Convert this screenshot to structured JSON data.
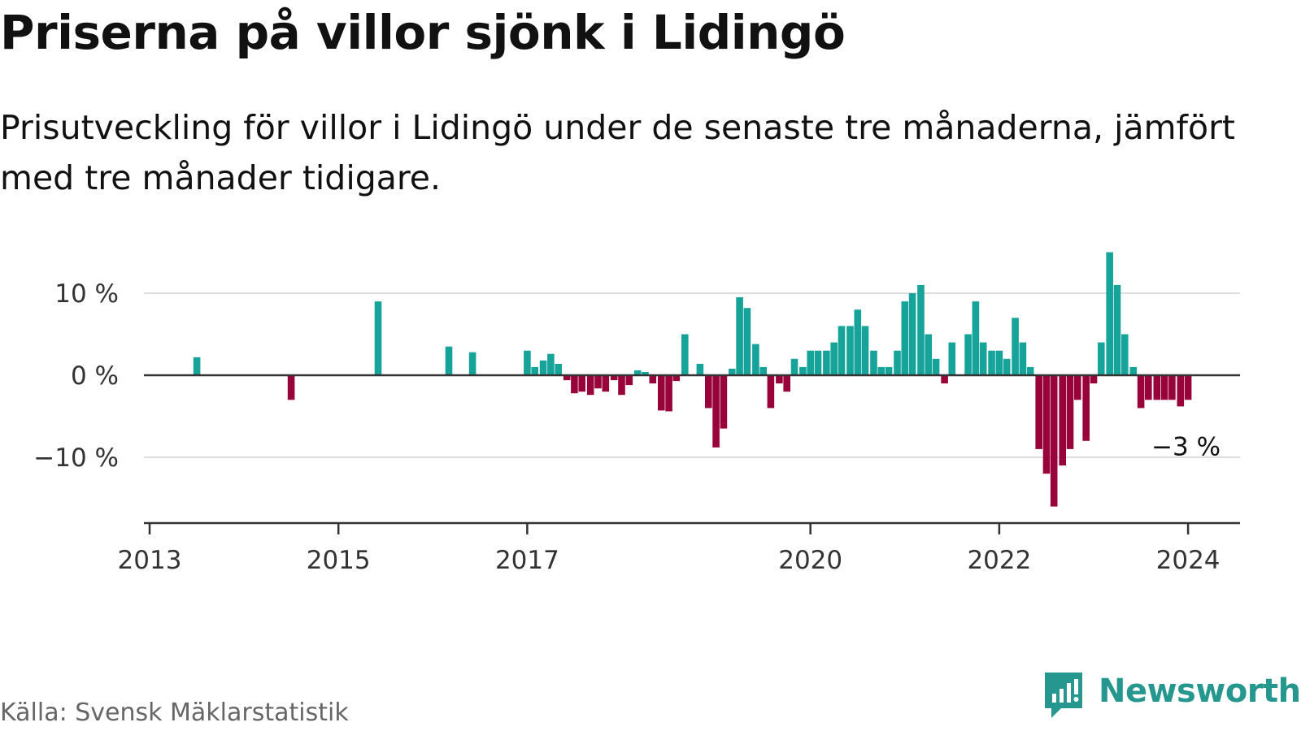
{
  "title": "Priserna på villor sjönk i Lidingö",
  "subtitle": "Prisutveckling för villor i Lidingö under de senaste tre månaderna, jämfört med tre månader tidigare.",
  "source": "Källa: Svensk Mäklarstatistik",
  "brand": "Newsworthy",
  "colors": {
    "positive": "#16a39a",
    "negative": "#980439",
    "grid": "#dddddd",
    "axis": "#333333",
    "brand": "#26978f"
  },
  "chart_data": {
    "type": "bar",
    "title": "Priserna på villor sjönk i Lidingö",
    "xlabel": "",
    "ylabel": "",
    "ylim": [
      -18,
      15
    ],
    "xlim": [
      2013,
      2024.6
    ],
    "grid": true,
    "y_ticks": [
      10,
      0,
      -10
    ],
    "y_tick_labels": [
      "10 %",
      "0 %",
      "−10 %"
    ],
    "x_ticks": [
      2013,
      2015,
      2017,
      2020,
      2022,
      2024
    ],
    "x_tick_labels": [
      "2013",
      "2015",
      "2017",
      "2020",
      "2022",
      "2024"
    ],
    "annotation": {
      "text": "−3 %",
      "x": 2024,
      "y": -3
    },
    "x": [
      2013.5,
      2014.5,
      2015.42,
      2016.17,
      2016.42,
      2017.0,
      2017.08,
      2017.17,
      2017.25,
      2017.33,
      2017.42,
      2017.5,
      2017.58,
      2017.67,
      2017.75,
      2017.83,
      2017.92,
      2018.0,
      2018.08,
      2018.17,
      2018.25,
      2018.33,
      2018.42,
      2018.5,
      2018.58,
      2018.67,
      2018.83,
      2018.92,
      2019.0,
      2019.08,
      2019.17,
      2019.25,
      2019.33,
      2019.42,
      2019.5,
      2019.58,
      2019.67,
      2019.75,
      2019.83,
      2019.92,
      2020.0,
      2020.08,
      2020.17,
      2020.25,
      2020.33,
      2020.42,
      2020.5,
      2020.58,
      2020.67,
      2020.75,
      2020.83,
      2020.92,
      2021.0,
      2021.08,
      2021.17,
      2021.25,
      2021.33,
      2021.42,
      2021.5,
      2021.67,
      2021.75,
      2021.83,
      2021.92,
      2022.0,
      2022.08,
      2022.17,
      2022.25,
      2022.33,
      2022.42,
      2022.5,
      2022.58,
      2022.67,
      2022.75,
      2022.83,
      2022.92,
      2023.0,
      2023.08,
      2023.17,
      2023.25,
      2023.33,
      2023.42,
      2023.5,
      2023.58,
      2023.67,
      2023.75,
      2023.83,
      2023.92,
      2024.0
    ],
    "values": [
      2.2,
      -3,
      9,
      3.5,
      2.8,
      3,
      1,
      1.8,
      2.6,
      1.4,
      -0.6,
      -2.2,
      -2,
      -2.4,
      -1.6,
      -2,
      -0.6,
      -2.4,
      -1.2,
      0.6,
      0.4,
      -1,
      -4.3,
      -4.4,
      -0.7,
      5,
      1.4,
      -4,
      -8.8,
      -6.5,
      0.8,
      9.5,
      8.2,
      3.8,
      1,
      -4,
      -1,
      -2,
      2,
      1,
      3,
      3,
      3,
      4,
      6,
      6,
      8,
      6,
      3,
      1,
      1,
      3,
      9,
      10,
      11,
      5,
      2,
      -1,
      4,
      5,
      9,
      4,
      3,
      3,
      2,
      7,
      4,
      1,
      -9,
      -12,
      -16,
      -11,
      -9,
      -3,
      -8,
      -1,
      4,
      15,
      11,
      5,
      1,
      -4,
      -3,
      -3,
      -3,
      -3,
      -3.8,
      -3
    ]
  }
}
